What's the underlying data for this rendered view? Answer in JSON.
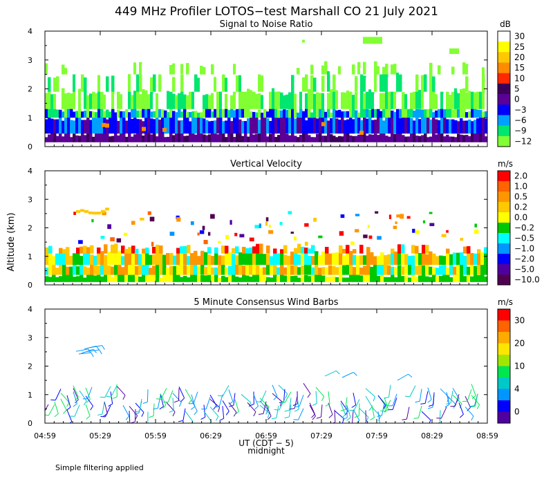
{
  "figure": {
    "title": "449 MHz Profiler LOTOS−test Marshall CO 21 July 2021",
    "ylabel": "Altitude (km)",
    "xlabel": "UT (CDT − 5)",
    "xnote": "midnight",
    "footer": "Simple filtering applied"
  },
  "chart_data": [
    {
      "type": "heatmap",
      "title": "Signal to Noise Ratio",
      "x_ticks": [
        "04:59",
        "05:29",
        "05:59",
        "06:29",
        "06:59",
        "07:29",
        "07:59",
        "08:29",
        "08:59"
      ],
      "y_ticks": [
        "0",
        "1",
        "2",
        "3",
        "4"
      ],
      "ylim": [
        0,
        4
      ],
      "colorbar": {
        "unit": "dB",
        "labels": [
          "30",
          "25",
          "20",
          "15",
          "10",
          "5",
          "0",
          "−3",
          "−6",
          "−9",
          "−12"
        ],
        "colors": [
          "#ffffff",
          "#ffff00",
          "#ffc800",
          "#ff8c00",
          "#ff2800",
          "#3c005a",
          "#5a0096",
          "#0000ff",
          "#00a0ff",
          "#00e66e",
          "#82ff32"
        ]
      }
    },
    {
      "type": "heatmap",
      "title": "Vertical Velocity",
      "x_ticks": [
        "04:59",
        "05:29",
        "05:59",
        "06:29",
        "06:59",
        "07:29",
        "07:59",
        "08:29",
        "08:59"
      ],
      "y_ticks": [
        "0",
        "1",
        "2",
        "3",
        "4"
      ],
      "ylim": [
        0,
        4
      ],
      "colorbar": {
        "unit": "m/s",
        "labels": [
          "2.0",
          "1.0",
          "0.5",
          "0.2",
          "0.0",
          "−0.2",
          "−0.5",
          "−1.0",
          "−2.0",
          "−5.0",
          "−10.0"
        ],
        "colors": [
          "#ff0000",
          "#ff6400",
          "#ff9600",
          "#ffc800",
          "#ffff00",
          "#00c800",
          "#00ffff",
          "#0096ff",
          "#0000ff",
          "#5000a0",
          "#500050"
        ]
      }
    },
    {
      "type": "scatter",
      "title": "5 Minute Consensus Wind Barbs",
      "x_ticks": [
        "04:59",
        "05:29",
        "05:59",
        "06:29",
        "06:59",
        "07:29",
        "07:59",
        "08:29",
        "08:59"
      ],
      "y_ticks": [
        "0",
        "1",
        "2",
        "3",
        "4"
      ],
      "ylim": [
        0,
        4
      ],
      "colorbar": {
        "unit": "m/s",
        "labels": [
          "30",
          "20",
          "10",
          "4",
          "0"
        ],
        "colors": [
          "#ff0000",
          "#ff6400",
          "#ffaa00",
          "#ffe600",
          "#a0e600",
          "#00e650",
          "#00c8c8",
          "#0096ff",
          "#0000ff",
          "#5000a0"
        ]
      }
    }
  ]
}
